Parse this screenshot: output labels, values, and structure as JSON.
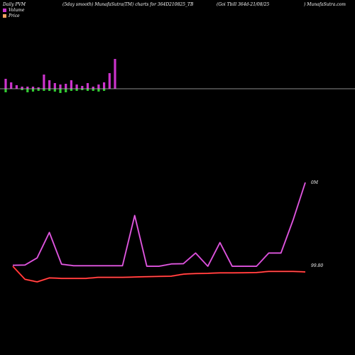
{
  "header": {
    "left": "Daily PVM",
    "mid": "(5day smooth) MunafaSutra(TM) charts for 364D210825_TB",
    "right": "(Goi  Tbill 364d-21/08/25",
    "brand": ") MunafaSutra.com"
  },
  "legend": [
    {
      "label": "Volume",
      "color": "#cc33cc"
    },
    {
      "label": "Price",
      "color": "#f4a460"
    }
  ],
  "chart_data": {
    "type": "line",
    "volume_bars": {
      "up": [
        14,
        9,
        5,
        3,
        3,
        3,
        2,
        20,
        12,
        8,
        6,
        7,
        12,
        6,
        4,
        8,
        3,
        6,
        9,
        22,
        42
      ],
      "down": [
        5,
        0,
        0,
        2,
        5,
        4,
        3,
        3,
        3,
        4,
        6,
        5,
        3,
        3,
        2,
        3,
        3,
        4,
        3,
        0,
        0
      ]
    },
    "price_axis_labels": [
      "0M",
      "99.80"
    ],
    "series": [
      {
        "color": "#cc33cc",
        "values": [
          0.4,
          0.5,
          3.3,
          13.3,
          0.8,
          0.2,
          0.2,
          0.2,
          0.2,
          0.2,
          20.0,
          0.0,
          0.0,
          0.9,
          1.0,
          5.2,
          0.0,
          9.3,
          0.0,
          0.0,
          0.0,
          5.2,
          5.2,
          18.2,
          33.0
        ]
      },
      {
        "color": "#ff1a1a",
        "values": [
          99.86,
          99.777,
          99.761,
          99.786,
          99.783,
          99.783,
          99.783,
          99.79,
          99.79,
          99.79,
          99.792,
          99.794,
          99.796,
          99.797,
          99.81,
          99.814,
          99.815,
          99.818,
          99.818,
          99.819,
          99.82,
          99.827,
          99.827,
          99.827,
          99.824
        ]
      }
    ]
  }
}
